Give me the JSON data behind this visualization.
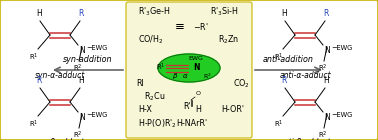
{
  "bg_outer": "#ffffff",
  "bg_center": "#f7f7d8",
  "border_outer": "#c8b400",
  "border_inner": "#c8b400",
  "ellipse_color": "#22cc22",
  "ellipse_edge": "#117711",
  "arrow_color": "#666666",
  "red_color": "#cc3333",
  "blue_color": "#2244bb",
  "syn_alpha_label": "syn-α-adduct",
  "syn_beta_label": "syn-β-adduct",
  "anti_alpha_label": "anti-α-adduct",
  "anti_beta_label": "anti-β-adduct",
  "syn_arrow_label": "syn-addition",
  "anti_arrow_label": "anti-addition"
}
